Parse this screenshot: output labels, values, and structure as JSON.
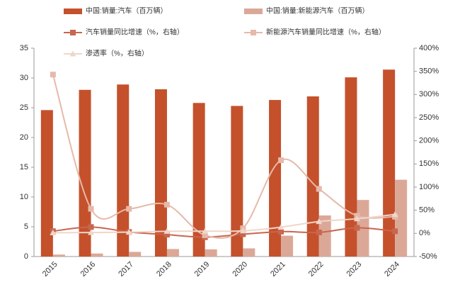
{
  "chart_data": {
    "type": "bar-line",
    "categories": [
      "2015",
      "2016",
      "2017",
      "2018",
      "2019",
      "2020",
      "2021",
      "2022",
      "2023",
      "2024"
    ],
    "series": [
      {
        "name": "中国:销量:汽车（百万辆）",
        "type": "bar",
        "color": "#c4512c",
        "values": [
          24.6,
          28.0,
          28.9,
          28.1,
          25.8,
          25.3,
          26.3,
          26.9,
          30.1,
          31.4
        ]
      },
      {
        "name": "中国:销量:新能源汽车（百万辆）",
        "type": "bar",
        "color": "#dba898",
        "values": [
          0.33,
          0.51,
          0.78,
          1.26,
          1.21,
          1.37,
          3.5,
          6.9,
          9.5,
          12.9
        ]
      },
      {
        "name": "汽车销量同比增速（%，右轴）",
        "type": "line",
        "marker": "square",
        "axis": "y2",
        "color": "#c8664f",
        "values": [
          4.7,
          13.7,
          3.0,
          -2.8,
          -8.2,
          -1.9,
          3.8,
          2.1,
          12.0,
          4.5
        ]
      },
      {
        "name": "新能源汽车销量同比增速（%，右轴）",
        "type": "line",
        "marker": "square",
        "axis": "y2",
        "color": "#e6b9aa",
        "values": [
          343,
          53,
          53,
          62,
          -4,
          11,
          158,
          96,
          38,
          36
        ]
      },
      {
        "name": "渗透率（%，右轴）",
        "type": "line",
        "marker": "triangle",
        "axis": "y2",
        "color": "#f0d6c9",
        "values": [
          1.3,
          1.8,
          2.7,
          4.5,
          4.7,
          5.4,
          13.4,
          25.6,
          31.6,
          40.9
        ]
      }
    ],
    "ylim": [
      0,
      35
    ],
    "yticks": [
      0,
      5,
      10,
      15,
      20,
      25,
      30,
      35
    ],
    "y2lim": [
      -50,
      400
    ],
    "y2ticks": [
      {
        "value": -50,
        "label": "-50%"
      },
      {
        "value": 0,
        "label": "0%"
      },
      {
        "value": 50,
        "label": "50%"
      },
      {
        "value": 100,
        "label": "100%"
      },
      {
        "value": 150,
        "label": "150%"
      },
      {
        "value": 200,
        "label": "200%"
      },
      {
        "value": 250,
        "label": "250%"
      },
      {
        "value": 300,
        "label": "300%"
      },
      {
        "value": 350,
        "label": "350%"
      },
      {
        "value": 400,
        "label": "400%"
      }
    ],
    "grid": false,
    "legend": "top"
  }
}
